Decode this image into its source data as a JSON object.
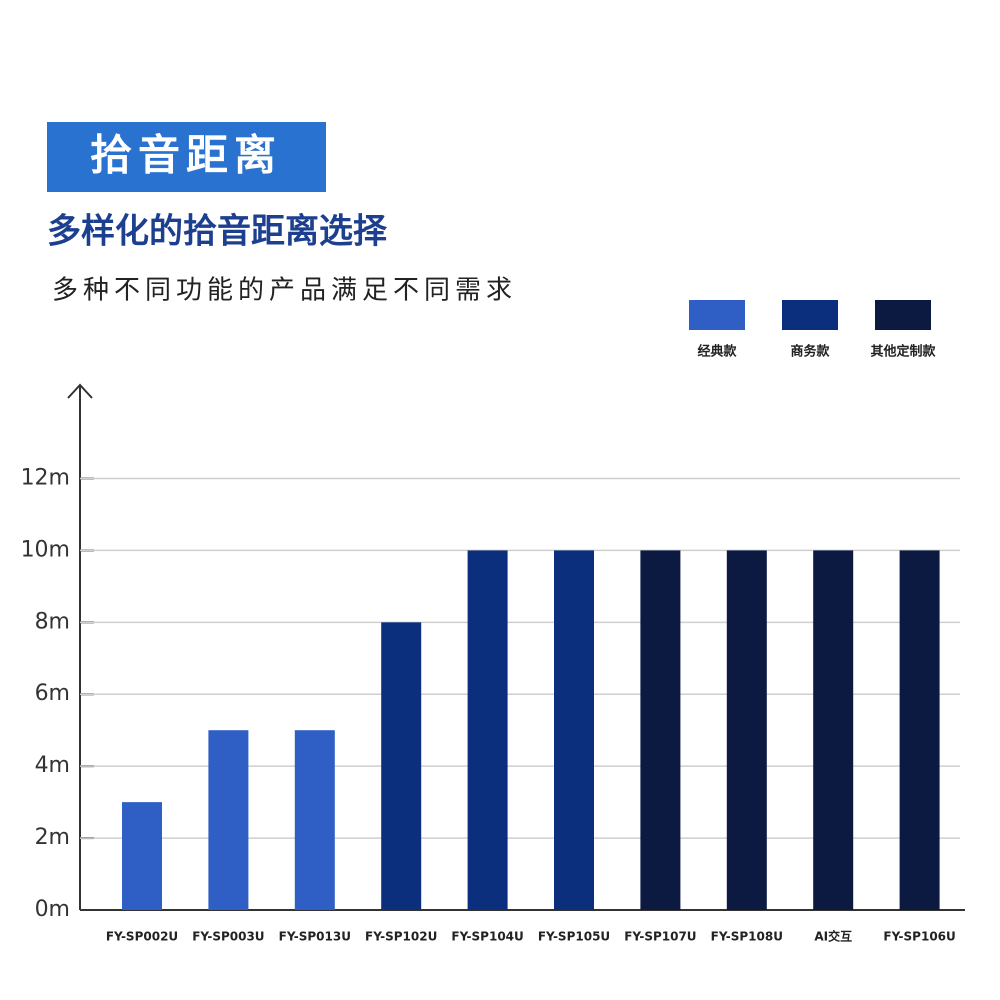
{
  "chart_data": {
    "type": "bar",
    "title": "拾音距离",
    "subtitle": "多样化的拾音距离选择",
    "description": "多种不同功能的产品满足不同需求",
    "categories": [
      "FY-SP002U",
      "FY-SP003U",
      "FY-SP013U",
      "FY-SP102U",
      "FY-SP104U",
      "FY-SP105U",
      "FY-SP107U",
      "FY-SP108U",
      "AI交互",
      "FY-SP106U"
    ],
    "series": [
      {
        "name": "经典款",
        "color": "#2f5fc4",
        "values": [
          3,
          5,
          5,
          null,
          null,
          null,
          null,
          null,
          null,
          null
        ]
      },
      {
        "name": "商务款",
        "color": "#0b2f7c",
        "values": [
          null,
          null,
          null,
          8,
          10,
          10,
          null,
          null,
          null,
          null
        ]
      },
      {
        "name": "其他定制款",
        "color": "#0c1a42",
        "values": [
          null,
          null,
          null,
          null,
          null,
          null,
          10,
          10,
          10,
          10
        ]
      }
    ],
    "ylim": [
      0,
      14.6
    ],
    "yticks": [
      {
        "value": 0,
        "label": "0m"
      },
      {
        "value": 2,
        "label": "2m"
      },
      {
        "value": 4,
        "label": "4m"
      },
      {
        "value": 6,
        "label": "6m"
      },
      {
        "value": 8,
        "label": "8m"
      },
      {
        "value": 10,
        "label": "10m"
      },
      {
        "value": 12,
        "label": "12m"
      }
    ],
    "grid": true,
    "legend": "top-right"
  }
}
